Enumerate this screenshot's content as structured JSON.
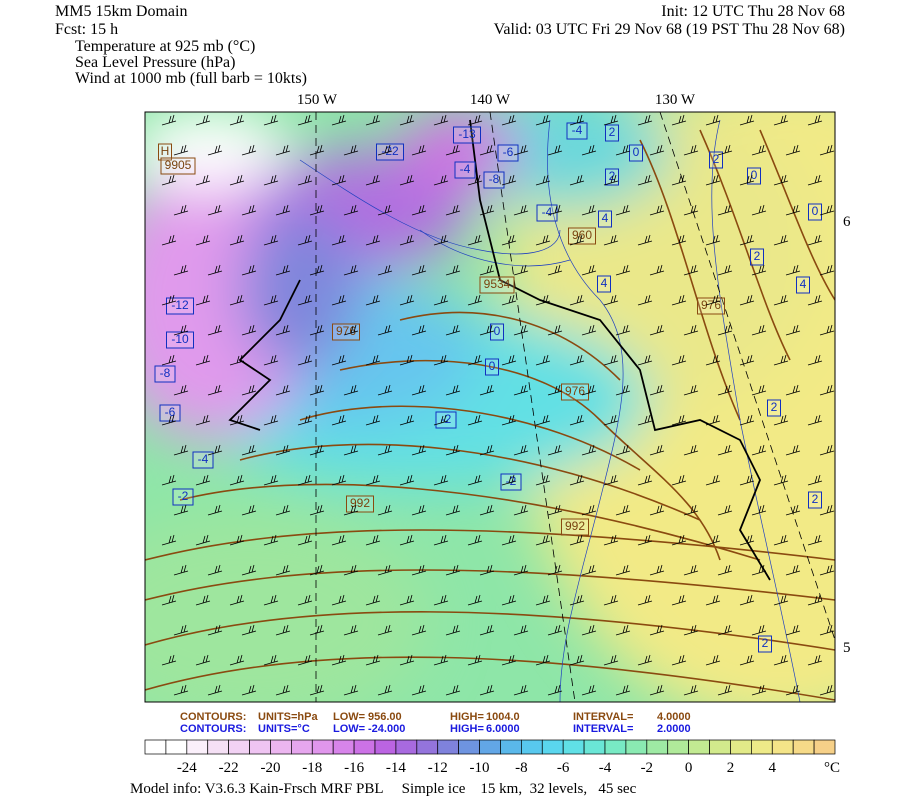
{
  "header": {
    "left": [
      "MM5 15km Domain",
      "Fcst:   15 h"
    ],
    "right": [
      "Init: 12 UTC Thu 28 Nov 68",
      "Valid: 03 UTC Fri 29 Nov 68 (19 PST Thu 28 Nov 68)"
    ],
    "fields": [
      "Temperature at 925 mb (°C)",
      "Sea Level Pressure (hPa)",
      "Wind at 1000 mb (full barb = 10kts)"
    ]
  },
  "map": {
    "lon_labels": [
      "150 W",
      "140 W",
      "130 W"
    ],
    "lat_labels": [
      "6",
      "5"
    ],
    "temp_labels": [
      "-13",
      "-22",
      "-4",
      "2",
      "-6",
      "-4",
      "-8",
      "0",
      "2",
      "0",
      "2",
      "-4",
      "4",
      "0",
      "2",
      "4",
      "4",
      "-12",
      "-10",
      "0",
      "-8",
      "0",
      "-6",
      "-2",
      "2",
      "-4",
      "-2",
      "-2",
      "2",
      "2"
    ],
    "pressure_labels": [
      "H",
      "9905",
      "960",
      "9534",
      "976",
      "976",
      "976",
      "992",
      "992"
    ]
  },
  "footer": {
    "contours": [
      [
        "CONTOURS:",
        "UNITS=hPa",
        "LOW=",
        "956.00",
        "HIGH=",
        "1004.0",
        "INTERVAL=",
        "4.0000"
      ],
      [
        "CONTOURS:",
        "UNITS=°C",
        "LOW=",
        "-24.000",
        "HIGH=",
        "6.0000",
        "INTERVAL=",
        "2.0000"
      ]
    ],
    "colorbar": {
      "labels": [
        "-24",
        "-22",
        "-20",
        "-18",
        "-16",
        "-14",
        "-12",
        "-10",
        "-8",
        "-6",
        "-4",
        "-2",
        "0",
        "2",
        "4"
      ],
      "unit": "°C",
      "colors": [
        "#ffffff",
        "#ffffff",
        "#fbf0fb",
        "#f5e0f5",
        "#f2d2f4",
        "#efc4f2",
        "#ecb6f0",
        "#e6a6ee",
        "#e096ec",
        "#d784ea",
        "#cc72e6",
        "#bb64e2",
        "#a86adf",
        "#9474dc",
        "#7f82dc",
        "#6e94e0",
        "#62a6e6",
        "#5ab8ea",
        "#58c8ee",
        "#5ad6ee",
        "#60e0e6",
        "#6ae6d6",
        "#78eac4",
        "#8aeab2",
        "#9eeaa4",
        "#b0ea9a",
        "#c2ea92",
        "#d2ea8c",
        "#e2ea88",
        "#eeea88",
        "#f4e488",
        "#f6da88",
        "#f6d088"
      ]
    },
    "model_info": "Model info: V3.6.3 Kain-Frsch MRF PBL     Simple ice    15 km,  32 levels,   45 sec"
  }
}
